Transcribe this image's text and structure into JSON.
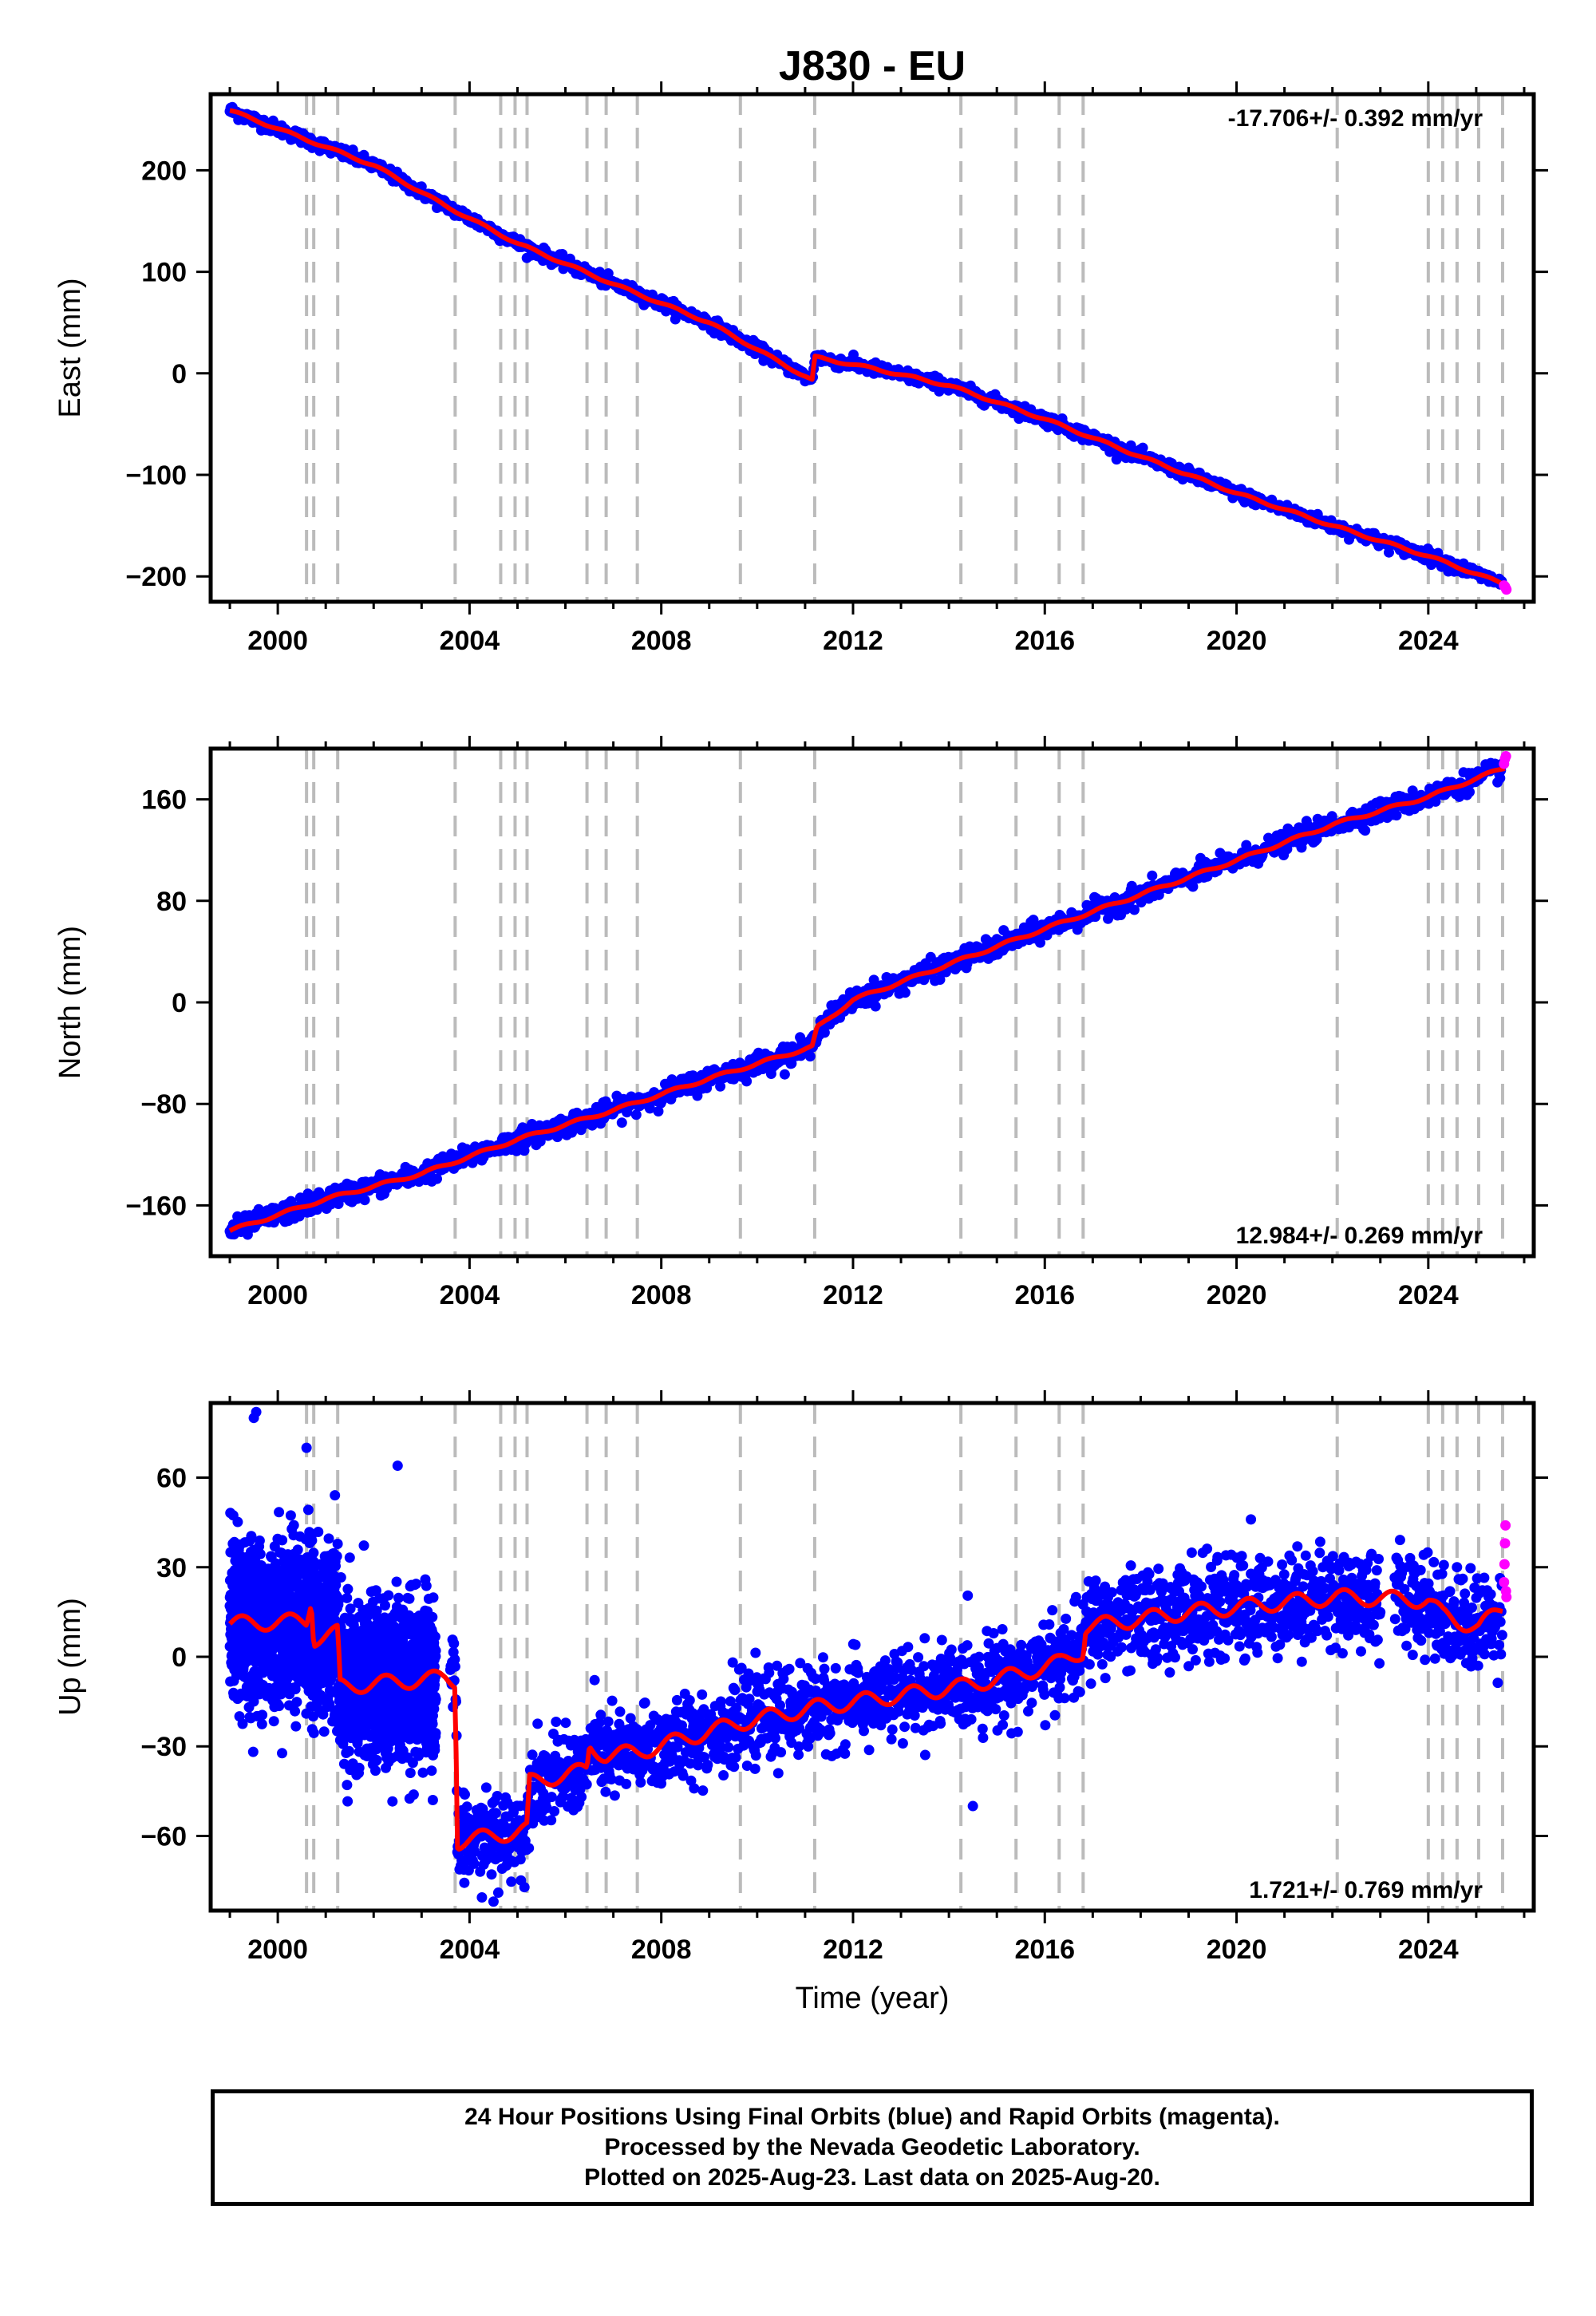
{
  "title": "J830 - EU",
  "xlabel": "Time (year)",
  "footer": {
    "line1": "24 Hour Positions Using Final Orbits (blue) and Rapid Orbits (magenta).",
    "line2": "Processed by the Nevada Geodetic Laboratory.",
    "line3": "Plotted on 2025-Aug-23. Last data on 2025-Aug-20."
  },
  "colors": {
    "final_orbits": "#0000ff",
    "rapid_orbits": "#ff00ff",
    "model_fit": "#ff0000",
    "event_lines": "#bbbbbb",
    "frame": "#000000"
  },
  "chart_data": [
    {
      "type": "scatter",
      "panel": "east",
      "ylabel": "East (mm)",
      "rate_label": "-17.706+/- 0.392 mm/yr",
      "xlim": [
        1998.6,
        2026.2
      ],
      "ylim": [
        -225,
        275
      ],
      "xticks": [
        2000,
        2004,
        2008,
        2012,
        2016,
        2020,
        2024
      ],
      "yticks": [
        -200,
        -100,
        0,
        100,
        200
      ],
      "ytick_labels": [
        "−200",
        "−100",
        "0",
        "100",
        "200"
      ],
      "event_lines": [
        2000.6,
        2000.75,
        2001.25,
        2003.7,
        2004.65,
        2004.95,
        2005.2,
        2006.45,
        2006.85,
        2007.5,
        2009.65,
        2011.2,
        2014.25,
        2015.4,
        2016.3,
        2016.8,
        2022.1,
        2024.0,
        2024.3,
        2024.6,
        2025.05,
        2025.55
      ],
      "fit": [
        [
          1999.0,
          259
        ],
        [
          2000.5,
          232
        ],
        [
          2002.0,
          205
        ],
        [
          2003.5,
          165
        ],
        [
          2005.0,
          128
        ],
        [
          2007.0,
          88
        ],
        [
          2009.0,
          50
        ],
        [
          2011.15,
          -7
        ],
        [
          2011.2,
          16
        ],
        [
          2012.5,
          4
        ],
        [
          2014.0,
          -12
        ],
        [
          2016.0,
          -45
        ],
        [
          2018.0,
          -82
        ],
        [
          2020.0,
          -118
        ],
        [
          2022.0,
          -150
        ],
        [
          2024.0,
          -180
        ],
        [
          2025.6,
          -208
        ]
      ],
      "final_segments": [
        {
          "start": 1999.0,
          "end": 2025.55,
          "gap": null,
          "jitter": 3
        }
      ],
      "rapid_points": [
        [
          2025.58,
          -209
        ],
        [
          2025.6,
          -210
        ],
        [
          2025.62,
          -212
        ],
        [
          2025.63,
          -213
        ]
      ]
    },
    {
      "type": "scatter",
      "panel": "north",
      "ylabel": "North (mm)",
      "rate_label": "12.984+/- 0.269 mm/yr",
      "xlim": [
        1998.6,
        2026.2
      ],
      "ylim": [
        -200,
        200
      ],
      "xticks": [
        2000,
        2004,
        2008,
        2012,
        2016,
        2020,
        2024
      ],
      "yticks": [
        -160,
        -80,
        0,
        80,
        160
      ],
      "ytick_labels": [
        "−160",
        "−80",
        "0",
        "80",
        "160"
      ],
      "event_lines": [
        2000.6,
        2000.75,
        2001.25,
        2003.7,
        2004.65,
        2004.95,
        2005.2,
        2006.45,
        2006.85,
        2007.5,
        2009.65,
        2011.2,
        2014.25,
        2015.4,
        2016.3,
        2016.8,
        2022.1,
        2024.0,
        2024.3,
        2024.6,
        2025.05,
        2025.55
      ],
      "fit": [
        [
          1999.0,
          -180
        ],
        [
          2001.0,
          -155
        ],
        [
          2003.0,
          -135
        ],
        [
          2005.0,
          -108
        ],
        [
          2007.0,
          -85
        ],
        [
          2009.0,
          -60
        ],
        [
          2011.15,
          -35
        ],
        [
          2011.25,
          -20
        ],
        [
          2012.0,
          2
        ],
        [
          2014.0,
          30
        ],
        [
          2016.0,
          58
        ],
        [
          2018.0,
          85
        ],
        [
          2020.0,
          112
        ],
        [
          2022.0,
          140
        ],
        [
          2024.0,
          162
        ],
        [
          2025.6,
          185
        ]
      ],
      "final_segments": [
        {
          "start": 1999.0,
          "end": 2025.55,
          "gap": null,
          "jitter": 4
        }
      ],
      "rapid_points": [
        [
          2025.58,
          188
        ],
        [
          2025.6,
          192
        ],
        [
          2025.62,
          194
        ]
      ]
    },
    {
      "type": "scatter",
      "panel": "up",
      "ylabel": "Up (mm)",
      "rate_label": "1.721+/- 0.769 mm/yr",
      "xlim": [
        1998.6,
        2026.2
      ],
      "ylim": [
        -85,
        85
      ],
      "xticks": [
        2000,
        2004,
        2008,
        2012,
        2016,
        2020,
        2024
      ],
      "yticks": [
        -60,
        -30,
        0,
        30,
        60
      ],
      "ytick_labels": [
        "−60",
        "−30",
        "0",
        "30",
        "60"
      ],
      "event_lines": [
        2000.6,
        2000.75,
        2001.25,
        2003.7,
        2004.65,
        2004.95,
        2005.2,
        2006.45,
        2006.85,
        2007.5,
        2009.65,
        2011.2,
        2014.25,
        2015.4,
        2016.3,
        2016.8,
        2022.1,
        2024.0,
        2024.3,
        2024.6,
        2025.05,
        2025.55
      ],
      "fit": [
        [
          1999.0,
          11
        ],
        [
          2000.6,
          12
        ],
        [
          2000.7,
          20
        ],
        [
          2000.75,
          6
        ],
        [
          2001.25,
          8
        ],
        [
          2001.3,
          -10
        ],
        [
          2003.5,
          -7
        ],
        [
          2003.7,
          -8
        ],
        [
          2003.75,
          -62
        ],
        [
          2005.2,
          -58
        ],
        [
          2005.25,
          -42
        ],
        [
          2006.45,
          -38
        ],
        [
          2006.5,
          -30
        ],
        [
          2006.85,
          -33
        ],
        [
          2007.5,
          -32
        ],
        [
          2009.65,
          -22
        ],
        [
          2011.2,
          -17
        ],
        [
          2014.25,
          -10
        ],
        [
          2015.4,
          -6
        ],
        [
          2016.3,
          -2
        ],
        [
          2016.8,
          2
        ],
        [
          2016.85,
          10
        ],
        [
          2019.0,
          15
        ],
        [
          2022.1,
          20
        ],
        [
          2024.0,
          19
        ],
        [
          2024.3,
          14
        ],
        [
          2024.6,
          12
        ],
        [
          2025.05,
          10
        ],
        [
          2025.55,
          16
        ]
      ],
      "final_segments": [
        {
          "start": 1999.0,
          "end": 2003.3,
          "gap": null,
          "jitter": 13
        },
        {
          "start": 2003.6,
          "end": 2025.55,
          "gap": null,
          "jitter": 7
        }
      ],
      "rapid_points": [
        [
          2025.58,
          25
        ],
        [
          2025.59,
          31
        ],
        [
          2025.6,
          38
        ],
        [
          2025.61,
          44
        ],
        [
          2025.62,
          22
        ],
        [
          2025.63,
          20
        ]
      ],
      "outliers": [
        [
          1999.5,
          80
        ],
        [
          1999.55,
          82
        ],
        [
          2000.6,
          70
        ],
        [
          2002.5,
          64
        ],
        [
          2014.5,
          -50
        ],
        [
          2020.3,
          46
        ],
        [
          2004.5,
          -82
        ],
        [
          2004.6,
          -79
        ]
      ]
    }
  ]
}
